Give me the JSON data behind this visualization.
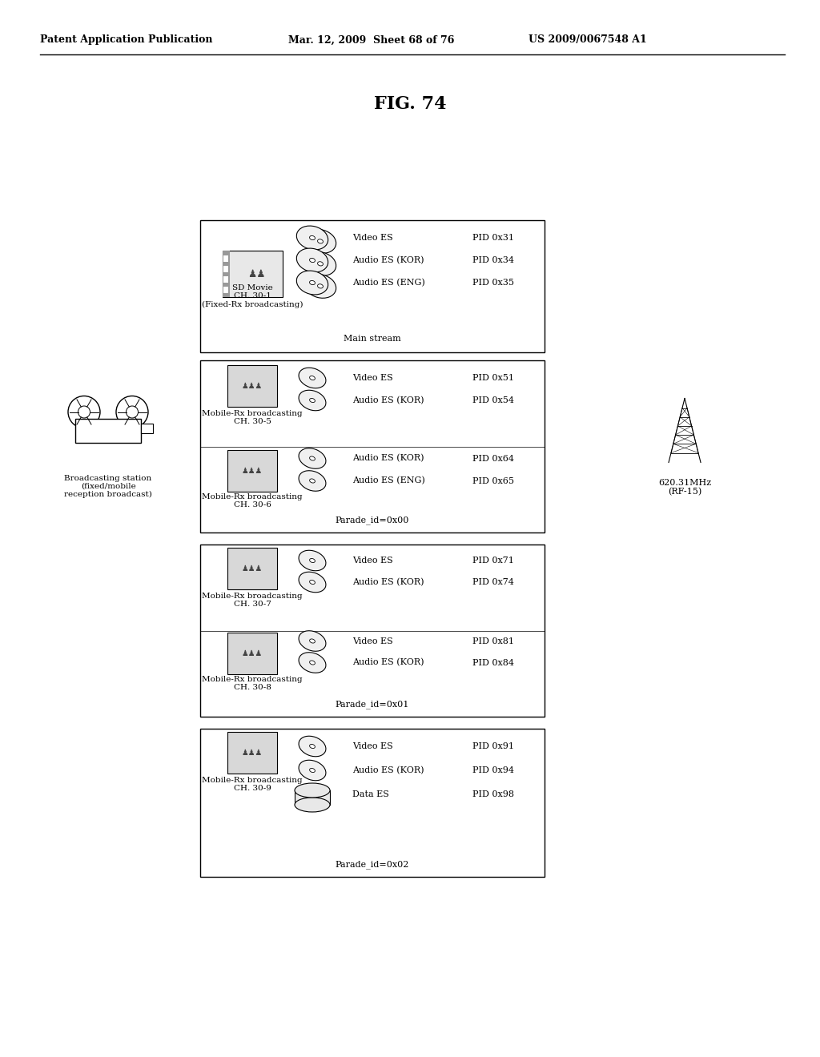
{
  "header_left": "Patent Application Publication",
  "header_mid": "Mar. 12, 2009  Sheet 68 of 76",
  "header_right": "US 2009/0067548 A1",
  "fig_title": "FIG. 74",
  "bg_color": "#ffffff",
  "box1": {
    "label": "SD Movie\nCH. 30-1\n(Fixed-Rx broadcasting)",
    "streams": [
      [
        "Video ES",
        "PID 0x31"
      ],
      [
        "Audio ES (KOR)",
        "PID 0x34"
      ],
      [
        "Audio ES (ENG)",
        "PID 0x35"
      ]
    ],
    "footer": "Main stream"
  },
  "box2": {
    "ch1_label": "Mobile-Rx broadcasting\nCH. 30-5",
    "ch1_streams": [
      [
        "Video ES",
        "PID 0x51"
      ],
      [
        "Audio ES (KOR)",
        "PID 0x54"
      ]
    ],
    "ch2_label": "Mobile-Rx broadcasting\nCH. 30-6",
    "ch2_streams": [
      [
        "Audio ES (KOR)",
        "PID 0x64"
      ],
      [
        "Audio ES (ENG)",
        "PID 0x65"
      ]
    ],
    "footer": "Parade_id=0x00"
  },
  "box3": {
    "ch1_label": "Mobile-Rx broadcasting\nCH. 30-7",
    "ch1_streams": [
      [
        "Video ES",
        "PID 0x71"
      ],
      [
        "Audio ES (KOR)",
        "PID 0x74"
      ]
    ],
    "ch2_label": "Mobile-Rx broadcasting\nCH. 30-8",
    "ch2_streams": [
      [
        "Video ES",
        "PID 0x81"
      ],
      [
        "Audio ES (KOR)",
        "PID 0x84"
      ]
    ],
    "footer": "Parade_id=0x01"
  },
  "box4": {
    "label": "Mobile-Rx broadcasting\nCH. 30-9",
    "streams": [
      [
        "Video ES",
        "PID 0x91"
      ],
      [
        "Audio ES (KOR)",
        "PID 0x94"
      ],
      [
        "Data ES",
        "PID 0x98"
      ]
    ],
    "footer": "Parade_id=0x02"
  },
  "left_label": "Broadcasting station\n(fixed/mobile\nreception broadcast)",
  "right_label": "620.31MHz\n(RF-15)",
  "header_fontsize": 9,
  "title_fontsize": 16,
  "body_fontsize": 8,
  "small_fontsize": 7.5
}
